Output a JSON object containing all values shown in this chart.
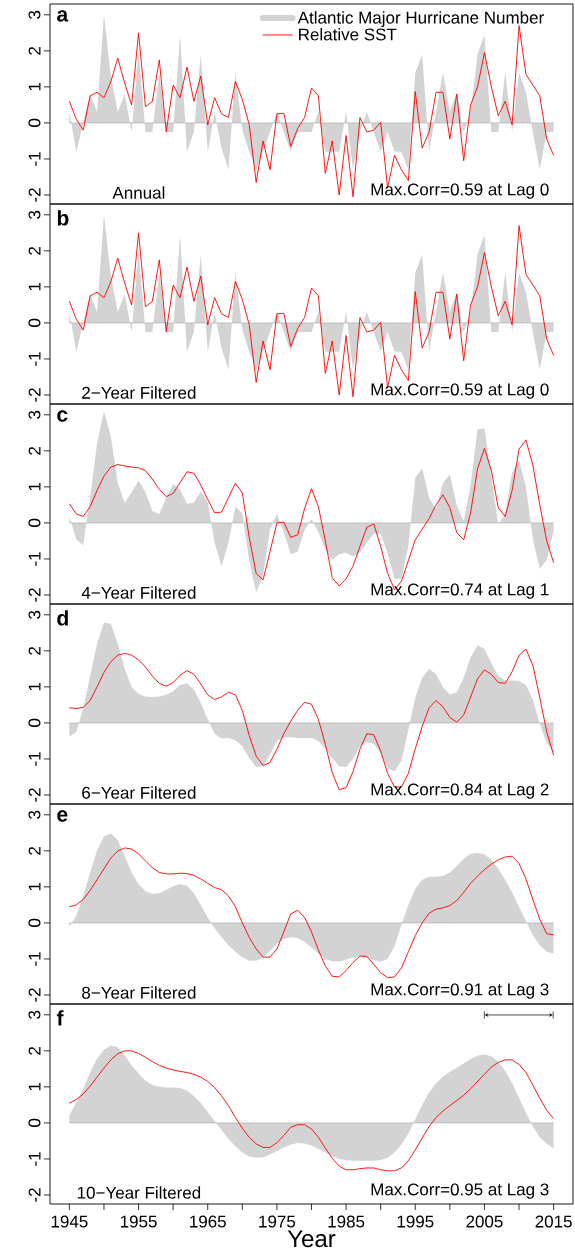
{
  "chart_data": [
    {
      "type": "area",
      "title": "a",
      "legend": "top right",
      "tick_labels": "y",
      "xlim": [
        1942.2,
        2017.8
      ],
      "ylim": [
        -2.25,
        3.3
      ],
      "yticks": [
        3,
        2,
        1,
        0,
        -1,
        -2
      ],
      "annotations": [
        "Annual",
        "Max.Corr=0.59 at Lag 0"
      ],
      "x": [
        1945,
        1946,
        1947,
        1948,
        1949,
        1950,
        1951,
        1952,
        1953,
        1954,
        1955,
        1956,
        1957,
        1958,
        1959,
        1960,
        1961,
        1962,
        1963,
        1964,
        1965,
        1966,
        1967,
        1968,
        1969,
        1970,
        1971,
        1972,
        1973,
        1974,
        1975,
        1976,
        1977,
        1978,
        1979,
        1980,
        1981,
        1982,
        1983,
        1984,
        1985,
        1986,
        1987,
        1988,
        1989,
        1990,
        1991,
        1992,
        1993,
        1994,
        1995,
        1996,
        1997,
        1998,
        1999,
        2000,
        2001,
        2002,
        2003,
        2004,
        2005,
        2006,
        2007,
        2008,
        2009,
        2010,
        2011,
        2012,
        2013,
        2014,
        2015
      ],
      "series": [
        {
          "name": "Atlantic Major Hurricane Number",
          "color": "#d3d3d3",
          "values": [
            0.3,
            -0.8,
            0,
            0.8,
            0.3,
            3.0,
            1.3,
            0.3,
            0.8,
            -0.25,
            2.0,
            -0.25,
            -0.25,
            1.4,
            -0.25,
            -0.25,
            2.45,
            -0.8,
            -0.25,
            1.9,
            -0.8,
            0.3,
            -0.7,
            -1.3,
            1.4,
            -0.2,
            -0.8,
            -1.3,
            -0.8,
            -0.25,
            0.3,
            -0.25,
            -0.8,
            -0.25,
            -0.25,
            -0.25,
            0.3,
            -0.8,
            -0.8,
            -0.8,
            0.3,
            -1.3,
            -0.25,
            0.3,
            -0.25,
            -0.8,
            -0.25,
            -0.8,
            -0.8,
            -1.3,
            1.4,
            1.9,
            -0.8,
            0.3,
            1.4,
            0.3,
            0.85,
            -0.25,
            0.3,
            1.9,
            2.45,
            -0.25,
            -0.25,
            1.4,
            -0.25,
            1.4,
            0.85,
            -0.25,
            -1.3,
            -0.25,
            -0.25
          ]
        },
        {
          "name": "Relative SST",
          "type": "line",
          "color": "#ff0000",
          "values": [
            0.6,
            0.1,
            -0.2,
            0.75,
            0.85,
            0.7,
            1.15,
            1.8,
            1.1,
            0.5,
            2.5,
            0.45,
            0.6,
            1.75,
            -0.25,
            1.05,
            0.7,
            1.55,
            0.6,
            1.3,
            -0.05,
            0.7,
            0.25,
            0.15,
            1.15,
            0.65,
            -0.05,
            -1.65,
            -0.5,
            -1.3,
            0.25,
            0.27,
            -0.65,
            -0.15,
            0.15,
            0.97,
            0.75,
            -1.4,
            -0.5,
            -2.0,
            -0.35,
            -2.05,
            0.15,
            -0.25,
            -0.2,
            0.02,
            -1.8,
            -0.9,
            -1.3,
            -1.6,
            0.87,
            -0.7,
            -0.25,
            0.85,
            0.85,
            -0.45,
            0.8,
            -1.05,
            0.5,
            1.0,
            1.95,
            1.0,
            0.2,
            0.6,
            -0.05,
            2.7,
            1.35,
            1.05,
            0.75,
            -0.45,
            -0.9
          ]
        }
      ]
    },
    {
      "type": "area",
      "title": "b",
      "tick_labels": "y",
      "xlim": [
        1942.2,
        2017.8
      ],
      "ylim": [
        -2.25,
        3.3
      ],
      "yticks": [
        3,
        2,
        1,
        0,
        -1,
        -2
      ],
      "annotations": [
        "2−Year Filtered",
        "Max.Corr=0.59 at Lag 0"
      ],
      "x": [
        1945,
        1946,
        1947,
        1948,
        1949,
        1950,
        1951,
        1952,
        1953,
        1954,
        1955,
        1956,
        1957,
        1958,
        1959,
        1960,
        1961,
        1962,
        1963,
        1964,
        1965,
        1966,
        1967,
        1968,
        1969,
        1970,
        1971,
        1972,
        1973,
        1974,
        1975,
        1976,
        1977,
        1978,
        1979,
        1980,
        1981,
        1982,
        1983,
        1984,
        1985,
        1986,
        1987,
        1988,
        1989,
        1990,
        1991,
        1992,
        1993,
        1994,
        1995,
        1996,
        1997,
        1998,
        1999,
        2000,
        2001,
        2002,
        2003,
        2004,
        2005,
        2006,
        2007,
        2008,
        2009,
        2010,
        2011,
        2012,
        2013,
        2014,
        2015
      ],
      "series": [
        {
          "color": "#d3d3d3",
          "values": [
            0.3,
            -0.8,
            0,
            0.8,
            0.3,
            3.0,
            1.3,
            0.3,
            0.8,
            -0.25,
            2.0,
            -0.25,
            -0.25,
            1.4,
            -0.25,
            -0.25,
            2.45,
            -0.8,
            -0.25,
            1.9,
            -0.8,
            0.3,
            -0.7,
            -1.3,
            1.4,
            -0.2,
            -0.8,
            -1.3,
            -0.8,
            -0.25,
            0.3,
            -0.25,
            -0.8,
            -0.25,
            -0.25,
            -0.25,
            0.3,
            -0.8,
            -0.8,
            -0.8,
            0.3,
            -1.3,
            -0.25,
            0.3,
            -0.25,
            -0.8,
            -0.25,
            -0.8,
            -0.8,
            -1.3,
            1.4,
            1.9,
            -0.8,
            0.3,
            1.4,
            0.3,
            0.85,
            -0.25,
            0.3,
            1.9,
            2.45,
            -0.25,
            -0.25,
            1.4,
            -0.25,
            1.4,
            0.85,
            -0.25,
            -1.3,
            -0.25,
            -0.25
          ]
        },
        {
          "type": "line",
          "color": "#ff0000",
          "values": [
            0.6,
            0.1,
            -0.2,
            0.75,
            0.85,
            0.7,
            1.15,
            1.8,
            1.1,
            0.5,
            2.5,
            0.45,
            0.6,
            1.75,
            -0.25,
            1.05,
            0.7,
            1.55,
            0.6,
            1.3,
            -0.05,
            0.7,
            0.25,
            0.15,
            1.15,
            0.65,
            -0.05,
            -1.65,
            -0.5,
            -1.3,
            0.25,
            0.27,
            -0.65,
            -0.15,
            0.15,
            0.97,
            0.75,
            -1.4,
            -0.5,
            -2.0,
            -0.35,
            -2.05,
            0.15,
            -0.25,
            -0.2,
            0.02,
            -1.8,
            -0.9,
            -1.3,
            -1.6,
            0.87,
            -0.7,
            -0.25,
            0.85,
            0.85,
            -0.45,
            0.8,
            -1.05,
            0.5,
            1.0,
            1.95,
            1.0,
            0.2,
            0.6,
            -0.05,
            2.7,
            1.35,
            1.05,
            0.75,
            -0.45,
            -0.9
          ]
        }
      ]
    },
    {
      "type": "area",
      "title": "c",
      "tick_labels": "y",
      "xlim": [
        1942.2,
        2017.8
      ],
      "ylim": [
        -2.25,
        3.3
      ],
      "yticks": [
        3,
        2,
        1,
        0,
        -1,
        -2
      ],
      "annotations": [
        "4−Year Filtered",
        "Max.Corr=0.74 at Lag 1"
      ],
      "x": [
        1945,
        1946,
        1947,
        1948,
        1949,
        1950,
        1951,
        1952,
        1953,
        1954,
        1955,
        1956,
        1957,
        1958,
        1959,
        1960,
        1961,
        1962,
        1963,
        1964,
        1965,
        1966,
        1967,
        1968,
        1969,
        1970,
        1971,
        1972,
        1973,
        1974,
        1975,
        1976,
        1977,
        1978,
        1979,
        1980,
        1981,
        1982,
        1983,
        1984,
        1985,
        1986,
        1987,
        1988,
        1989,
        1990,
        1991,
        1992,
        1993,
        1994,
        1995,
        1996,
        1997,
        1998,
        1999,
        2000,
        2001,
        2002,
        2003,
        2004,
        2005,
        2006,
        2007,
        2008,
        2009,
        2010,
        2011,
        2012,
        2013,
        2014,
        2015
      ],
      "series": [
        {
          "color": "#d3d3d3",
          "values": [
            0.17,
            -0.45,
            -0.62,
            0.7,
            2.2,
            3.1,
            2.4,
            1.1,
            0.55,
            0.85,
            1.17,
            0.85,
            0.33,
            0.25,
            0.7,
            1.07,
            0.93,
            0.53,
            0.56,
            0.88,
            0.58,
            -0.55,
            -1.2,
            -0.55,
            0.45,
            0.27,
            -1.05,
            -1.93,
            -1.45,
            -0.2,
            0.25,
            -0.25,
            -0.87,
            -0.8,
            -0.2,
            0.1,
            -0.25,
            -0.75,
            -1.02,
            -0.87,
            -0.83,
            -0.93,
            -0.83,
            -0.55,
            -0.3,
            -0.3,
            -0.85,
            -1.55,
            -1.55,
            -0.65,
            1.25,
            1.52,
            0.7,
            0.38,
            1.1,
            1.35,
            0.48,
            0.05,
            1.05,
            2.6,
            2.62,
            1.3,
            -0.05,
            0.27,
            1.4,
            1.75,
            1.0,
            -0.45,
            -1.28,
            -1.03,
            -0.23
          ]
        },
        {
          "type": "line",
          "color": "#ff0000",
          "values": [
            0.53,
            0.25,
            0.18,
            0.45,
            0.9,
            1.3,
            1.55,
            1.62,
            1.58,
            1.55,
            1.53,
            1.45,
            1.22,
            0.93,
            0.73,
            0.82,
            1.12,
            1.42,
            1.38,
            1.05,
            0.65,
            0.28,
            0.3,
            0.7,
            1.1,
            0.83,
            -0.4,
            -1.4,
            -1.58,
            -0.8,
            0.0,
            0.02,
            -0.4,
            -0.33,
            0.4,
            0.95,
            0.45,
            -0.5,
            -1.52,
            -1.75,
            -1.55,
            -1.2,
            -0.65,
            -0.12,
            -0.03,
            -0.65,
            -1.4,
            -1.85,
            -1.62,
            -1.05,
            -0.47,
            -0.17,
            0.12,
            0.5,
            0.78,
            0.42,
            -0.27,
            -0.47,
            0.28,
            1.5,
            2.07,
            1.45,
            0.42,
            0.18,
            0.9,
            2.05,
            2.3,
            1.6,
            0.5,
            -0.5,
            -1.1
          ]
        }
      ]
    },
    {
      "type": "area",
      "title": "d",
      "tick_labels": "y",
      "xlim": [
        1942.2,
        2017.8
      ],
      "ylim": [
        -2.25,
        3.3
      ],
      "yticks": [
        3,
        2,
        1,
        0,
        -1,
        -2
      ],
      "annotations": [
        "6−Year Filtered",
        "Max.Corr=0.84 at Lag 2"
      ],
      "x": [
        1945,
        1946,
        1947,
        1948,
        1949,
        1950,
        1951,
        1952,
        1953,
        1954,
        1955,
        1956,
        1957,
        1958,
        1959,
        1960,
        1961,
        1962,
        1963,
        1964,
        1965,
        1966,
        1967,
        1968,
        1969,
        1970,
        1971,
        1972,
        1973,
        1974,
        1975,
        1976,
        1977,
        1978,
        1979,
        1980,
        1981,
        1982,
        1983,
        1984,
        1985,
        1986,
        1987,
        1988,
        1989,
        1990,
        1991,
        1992,
        1993,
        1994,
        1995,
        1996,
        1997,
        1998,
        1999,
        2000,
        2001,
        2002,
        2003,
        2004,
        2005,
        2006,
        2007,
        2008,
        2009,
        2010,
        2011,
        2012,
        2013,
        2014,
        2015
      ],
      "series": [
        {
          "color": "#d3d3d3",
          "values": [
            -0.38,
            -0.25,
            0.4,
            1.3,
            2.2,
            2.78,
            2.75,
            2.2,
            1.5,
            1.0,
            0.8,
            0.73,
            0.72,
            0.73,
            0.78,
            0.88,
            1.05,
            1.1,
            0.93,
            0.55,
            0.1,
            -0.3,
            -0.43,
            -0.42,
            -0.48,
            -0.65,
            -0.98,
            -1.22,
            -1.2,
            -0.88,
            -0.5,
            -0.4,
            -0.4,
            -0.42,
            -0.42,
            -0.42,
            -0.5,
            -0.72,
            -0.98,
            -1.2,
            -1.22,
            -1.0,
            -0.65,
            -0.53,
            -0.58,
            -0.85,
            -1.25,
            -1.35,
            -1.05,
            -0.2,
            0.7,
            1.25,
            1.5,
            1.35,
            1.0,
            0.78,
            0.85,
            1.25,
            1.82,
            2.15,
            2.05,
            1.65,
            1.3,
            1.18,
            1.18,
            1.17,
            1.05,
            0.65,
            -0.02,
            -0.55,
            -0.82
          ]
        },
        {
          "type": "line",
          "color": "#ff0000",
          "values": [
            0.42,
            0.4,
            0.43,
            0.62,
            1.0,
            1.4,
            1.7,
            1.88,
            1.93,
            1.88,
            1.75,
            1.55,
            1.3,
            1.1,
            1.02,
            1.12,
            1.32,
            1.45,
            1.35,
            1.08,
            0.78,
            0.65,
            0.72,
            0.85,
            0.78,
            0.35,
            -0.35,
            -0.92,
            -1.18,
            -1.1,
            -0.73,
            -0.3,
            0.05,
            0.35,
            0.57,
            0.52,
            0.1,
            -0.6,
            -1.38,
            -1.85,
            -1.8,
            -1.35,
            -0.73,
            -0.3,
            -0.33,
            -0.78,
            -1.4,
            -1.78,
            -1.78,
            -1.4,
            -0.72,
            -0.1,
            0.42,
            0.62,
            0.45,
            0.15,
            0.02,
            0.22,
            0.72,
            1.22,
            1.47,
            1.35,
            1.12,
            1.1,
            1.42,
            1.88,
            2.05,
            1.6,
            0.7,
            -0.25,
            -0.9
          ]
        }
      ]
    },
    {
      "type": "area",
      "title": "e",
      "tick_labels": "y",
      "xlim": [
        1942.2,
        2017.8
      ],
      "ylim": [
        -2.25,
        3.3
      ],
      "yticks": [
        3,
        2,
        1,
        0,
        -1,
        -2
      ],
      "annotations": [
        "8−Year Filtered",
        "Max.Corr=0.91 at Lag 3"
      ],
      "x": [
        1945,
        1946,
        1947,
        1948,
        1949,
        1950,
        1951,
        1952,
        1953,
        1954,
        1955,
        1956,
        1957,
        1958,
        1959,
        1960,
        1961,
        1962,
        1963,
        1964,
        1965,
        1966,
        1967,
        1968,
        1969,
        1970,
        1971,
        1972,
        1973,
        1974,
        1975,
        1976,
        1977,
        1978,
        1979,
        1980,
        1981,
        1982,
        1983,
        1984,
        1985,
        1986,
        1987,
        1988,
        1989,
        1990,
        1991,
        1992,
        1993,
        1994,
        1995,
        1996,
        1997,
        1998,
        1999,
        2000,
        2001,
        2002,
        2003,
        2004,
        2005,
        2006,
        2007,
        2008,
        2009,
        2010,
        2011,
        2012,
        2013,
        2014,
        2015
      ],
      "series": [
        {
          "color": "#d3d3d3",
          "values": [
            -0.1,
            0.2,
            0.75,
            1.4,
            2.0,
            2.4,
            2.48,
            2.3,
            1.85,
            1.4,
            1.08,
            0.88,
            0.8,
            0.82,
            0.92,
            1.02,
            1.08,
            1.03,
            0.82,
            0.5,
            0.15,
            -0.15,
            -0.4,
            -0.62,
            -0.8,
            -0.95,
            -1.05,
            -1.05,
            -0.95,
            -0.78,
            -0.58,
            -0.45,
            -0.4,
            -0.42,
            -0.52,
            -0.68,
            -0.85,
            -1.0,
            -1.07,
            -1.07,
            -1.02,
            -0.95,
            -0.93,
            -0.95,
            -1.03,
            -1.08,
            -1.0,
            -0.65,
            -0.05,
            0.5,
            0.95,
            1.2,
            1.28,
            1.28,
            1.3,
            1.4,
            1.58,
            1.78,
            1.92,
            1.95,
            1.9,
            1.75,
            1.5,
            1.2,
            0.85,
            0.45,
            0.05,
            -0.35,
            -0.62,
            -0.8,
            -0.85
          ]
        },
        {
          "type": "line",
          "color": "#ff0000",
          "values": [
            0.45,
            0.5,
            0.65,
            0.9,
            1.2,
            1.5,
            1.8,
            2.0,
            2.08,
            2.05,
            1.92,
            1.72,
            1.53,
            1.4,
            1.36,
            1.36,
            1.38,
            1.37,
            1.32,
            1.22,
            1.1,
            0.98,
            0.92,
            0.75,
            0.45,
            0.0,
            -0.4,
            -0.72,
            -0.95,
            -0.95,
            -0.72,
            -0.25,
            0.25,
            0.35,
            0.15,
            -0.25,
            -0.75,
            -1.2,
            -1.48,
            -1.5,
            -1.32,
            -1.1,
            -0.92,
            -0.93,
            -1.15,
            -1.38,
            -1.52,
            -1.5,
            -1.25,
            -0.8,
            -0.35,
            0.0,
            0.27,
            0.38,
            0.42,
            0.48,
            0.62,
            0.85,
            1.1,
            1.3,
            1.48,
            1.63,
            1.75,
            1.83,
            1.85,
            1.65,
            1.22,
            0.65,
            0.1,
            -0.3,
            -0.33
          ]
        }
      ]
    },
    {
      "type": "area",
      "title": "f",
      "xlabel": "Year",
      "xlim": [
        1942.2,
        2017.8
      ],
      "ylim": [
        -2.25,
        3.3
      ],
      "yticks": [
        3,
        2,
        1,
        0,
        -1,
        -2
      ],
      "xticks": [
        1945,
        {
          "value": 1950,
          "label": null
        },
        1955,
        {
          "value": 1960,
          "label": null
        },
        1965,
        {
          "value": 1970,
          "label": null
        },
        1975,
        {
          "value": 1980,
          "label": null
        },
        1985,
        {
          "value": 1990,
          "label": null
        },
        1995,
        {
          "value": 2000,
          "label": null
        },
        2005,
        {
          "value": 2010,
          "label": null
        },
        2015
      ],
      "annotations": [
        "10−Year Filtered",
        "Max.Corr=0.95 at Lag 3"
      ],
      "x": [
        1945,
        1946,
        1947,
        1948,
        1949,
        1950,
        1951,
        1952,
        1953,
        1954,
        1955,
        1956,
        1957,
        1958,
        1959,
        1960,
        1961,
        1962,
        1963,
        1964,
        1965,
        1966,
        1967,
        1968,
        1969,
        1970,
        1971,
        1972,
        1973,
        1974,
        1975,
        1976,
        1977,
        1978,
        1979,
        1980,
        1981,
        1982,
        1983,
        1984,
        1985,
        1986,
        1987,
        1988,
        1989,
        1990,
        1991,
        1992,
        1993,
        1994,
        1995,
        1996,
        1997,
        1998,
        1999,
        2000,
        2001,
        2002,
        2003,
        2004,
        2005,
        2006,
        2007,
        2008,
        2009,
        2010,
        2011,
        2012,
        2013,
        2014,
        2015
      ],
      "series": [
        {
          "color": "#d3d3d3",
          "values": [
            0.22,
            0.55,
            0.95,
            1.4,
            1.78,
            2.03,
            2.15,
            2.1,
            1.88,
            1.6,
            1.37,
            1.18,
            1.05,
            1.0,
            0.98,
            0.98,
            0.97,
            0.9,
            0.75,
            0.55,
            0.3,
            0.05,
            -0.2,
            -0.45,
            -0.65,
            -0.82,
            -0.93,
            -0.97,
            -0.95,
            -0.88,
            -0.78,
            -0.68,
            -0.6,
            -0.56,
            -0.57,
            -0.63,
            -0.72,
            -0.82,
            -0.92,
            -1.0,
            -1.03,
            -1.05,
            -1.05,
            -1.05,
            -1.05,
            -1.03,
            -0.97,
            -0.82,
            -0.6,
            -0.3,
            0.1,
            0.5,
            0.85,
            1.1,
            1.28,
            1.42,
            1.53,
            1.65,
            1.77,
            1.87,
            1.9,
            1.85,
            1.7,
            1.45,
            1.1,
            0.7,
            0.28,
            -0.1,
            -0.4,
            -0.58,
            -0.7
          ]
        },
        {
          "type": "line",
          "color": "#ff0000",
          "values": [
            0.55,
            0.65,
            0.8,
            1.02,
            1.27,
            1.52,
            1.75,
            1.92,
            2.0,
            2.0,
            1.93,
            1.82,
            1.7,
            1.6,
            1.52,
            1.47,
            1.43,
            1.4,
            1.35,
            1.27,
            1.15,
            0.98,
            0.75,
            0.48,
            0.15,
            -0.15,
            -0.4,
            -0.58,
            -0.68,
            -0.68,
            -0.55,
            -0.35,
            -0.12,
            -0.05,
            -0.05,
            -0.17,
            -0.4,
            -0.7,
            -0.98,
            -1.2,
            -1.3,
            -1.3,
            -1.27,
            -1.25,
            -1.25,
            -1.3,
            -1.33,
            -1.33,
            -1.25,
            -1.05,
            -0.75,
            -0.42,
            -0.1,
            0.15,
            0.33,
            0.48,
            0.62,
            0.77,
            0.95,
            1.15,
            1.35,
            1.55,
            1.68,
            1.75,
            1.75,
            1.62,
            1.4,
            1.05,
            0.68,
            0.35,
            0.12
          ]
        }
      ]
    }
  ]
}
